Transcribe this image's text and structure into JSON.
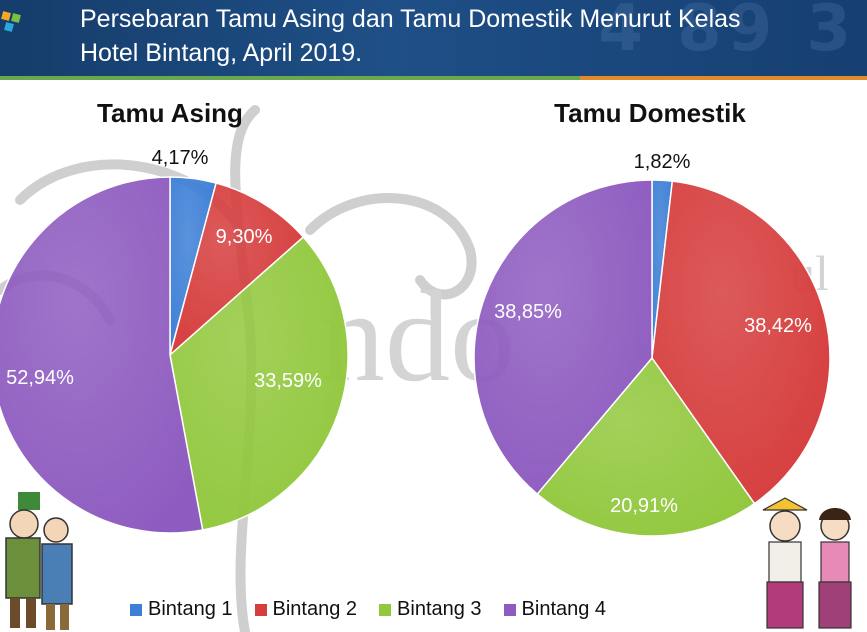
{
  "header": {
    "title_line1": "Persebaran Tamu Asing dan Tamu Domestik Menurut Kelas",
    "title_line2": "Hotel Bintang, April 2019."
  },
  "colors": {
    "bintang_1": "#3d7fd6",
    "bintang_2": "#d63d3d",
    "bintang_3": "#92c83e",
    "bintang_4": "#8e5cc0",
    "header_bg": "#1e4f86"
  },
  "chart_data": [
    {
      "type": "pie",
      "title": "Tamu Asing",
      "labels": [
        "Bintang 1",
        "Bintang 2",
        "Bintang 3",
        "Bintang 4"
      ],
      "values": [
        4.17,
        9.3,
        33.59,
        52.94
      ],
      "display": [
        "4,17%",
        "9,30%",
        "33,59%",
        "52,94%"
      ],
      "legend": "bottom"
    },
    {
      "type": "pie",
      "title": "Tamu Domestik",
      "labels": [
        "Bintang 1",
        "Bintang 2",
        "Bintang 3",
        "Bintang 4"
      ],
      "values": [
        1.82,
        38.42,
        20.91,
        38.85
      ],
      "display": [
        "1,82%",
        "38,42%",
        "20,91%",
        "38,85%"
      ],
      "legend": "bottom"
    }
  ],
  "legend": {
    "items": [
      "Bintang 1",
      "Bintang 2",
      "Bintang 3",
      "Bintang 4"
    ]
  }
}
